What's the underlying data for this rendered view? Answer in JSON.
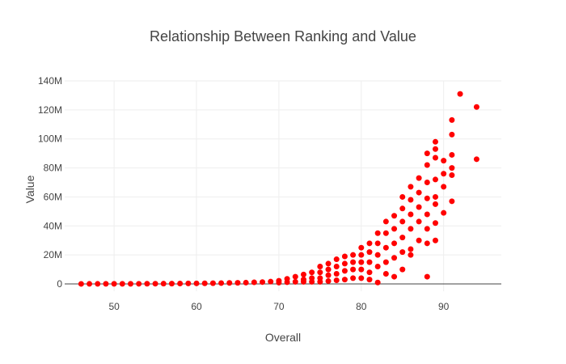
{
  "chart_data": {
    "type": "scatter",
    "title": "Relationship Between Ranking and Value",
    "xlabel": "Overall",
    "ylabel": "Value",
    "xlim": [
      44,
      97
    ],
    "ylim": [
      -5000000,
      140000000
    ],
    "x_ticks": [
      50,
      60,
      70,
      80,
      90
    ],
    "x_tick_labels": [
      "50",
      "60",
      "70",
      "80",
      "90"
    ],
    "y_ticks": [
      0,
      20000000,
      40000000,
      60000000,
      80000000,
      100000000,
      120000000,
      140000000
    ],
    "y_tick_labels": [
      "0",
      "20M",
      "40M",
      "60M",
      "80M",
      "100M",
      "120M",
      "140M"
    ],
    "grid": true,
    "legend": "none",
    "marker_color": "#ff0000",
    "points": [
      [
        46,
        50000
      ],
      [
        47,
        60000
      ],
      [
        48,
        60000
      ],
      [
        49,
        80000
      ],
      [
        50,
        80000
      ],
      [
        51,
        100000
      ],
      [
        52,
        110000
      ],
      [
        53,
        120000
      ],
      [
        54,
        150000
      ],
      [
        55,
        180000
      ],
      [
        56,
        200000
      ],
      [
        57,
        250000
      ],
      [
        58,
        300000
      ],
      [
        59,
        350000
      ],
      [
        60,
        400000
      ],
      [
        61,
        450000
      ],
      [
        62,
        500000
      ],
      [
        63,
        600000
      ],
      [
        64,
        700000
      ],
      [
        65,
        800000
      ],
      [
        66,
        900000
      ],
      [
        67,
        1100000
      ],
      [
        68,
        1300000
      ],
      [
        69,
        1600000
      ],
      [
        70,
        2200000
      ],
      [
        70,
        900000
      ],
      [
        71,
        3500000
      ],
      [
        71,
        1200000
      ],
      [
        72,
        5000000
      ],
      [
        72,
        1500000
      ],
      [
        73,
        6500000
      ],
      [
        73,
        3000000
      ],
      [
        73,
        1500000
      ],
      [
        74,
        8000000
      ],
      [
        74,
        4000000
      ],
      [
        74,
        1500000
      ],
      [
        75,
        12000000
      ],
      [
        75,
        8000000
      ],
      [
        75,
        4000000
      ],
      [
        75,
        1500000
      ],
      [
        76,
        14000000
      ],
      [
        76,
        10000000
      ],
      [
        76,
        6000000
      ],
      [
        76,
        2000000
      ],
      [
        77,
        17000000
      ],
      [
        77,
        12000000
      ],
      [
        77,
        7000000
      ],
      [
        77,
        2500000
      ],
      [
        78,
        19000000
      ],
      [
        78,
        14000000
      ],
      [
        78,
        9000000
      ],
      [
        78,
        3000000
      ],
      [
        79,
        20000000
      ],
      [
        79,
        15000000
      ],
      [
        79,
        10000000
      ],
      [
        79,
        4000000
      ],
      [
        80,
        25000000
      ],
      [
        80,
        20000000
      ],
      [
        80,
        15000000
      ],
      [
        80,
        10000000
      ],
      [
        80,
        4000000
      ],
      [
        81,
        28000000
      ],
      [
        81,
        22000000
      ],
      [
        81,
        15000000
      ],
      [
        81,
        8000000
      ],
      [
        81,
        3000000
      ],
      [
        82,
        35000000
      ],
      [
        82,
        28000000
      ],
      [
        82,
        20000000
      ],
      [
        82,
        12000000
      ],
      [
        82,
        1000000
      ],
      [
        83,
        43000000
      ],
      [
        83,
        35000000
      ],
      [
        83,
        25000000
      ],
      [
        83,
        15000000
      ],
      [
        83,
        7000000
      ],
      [
        84,
        47000000
      ],
      [
        84,
        38000000
      ],
      [
        84,
        28000000
      ],
      [
        84,
        18000000
      ],
      [
        84,
        5000000
      ],
      [
        85,
        60000000
      ],
      [
        85,
        52000000
      ],
      [
        85,
        43000000
      ],
      [
        85,
        32000000
      ],
      [
        85,
        22000000
      ],
      [
        85,
        10000000
      ],
      [
        86,
        67000000
      ],
      [
        86,
        58000000
      ],
      [
        86,
        48000000
      ],
      [
        86,
        38000000
      ],
      [
        86,
        24000000
      ],
      [
        86,
        20000000
      ],
      [
        87,
        73000000
      ],
      [
        87,
        63000000
      ],
      [
        87,
        53000000
      ],
      [
        87,
        43000000
      ],
      [
        87,
        30000000
      ],
      [
        88,
        90000000
      ],
      [
        88,
        82000000
      ],
      [
        88,
        70000000
      ],
      [
        88,
        59000000
      ],
      [
        88,
        48000000
      ],
      [
        88,
        38000000
      ],
      [
        88,
        28000000
      ],
      [
        88,
        5000000
      ],
      [
        89,
        98000000
      ],
      [
        89,
        93000000
      ],
      [
        89,
        87000000
      ],
      [
        89,
        72000000
      ],
      [
        89,
        60000000
      ],
      [
        89,
        55000000
      ],
      [
        89,
        42000000
      ],
      [
        89,
        30000000
      ],
      [
        90,
        85000000
      ],
      [
        90,
        76000000
      ],
      [
        90,
        67000000
      ],
      [
        90,
        49000000
      ],
      [
        91,
        113000000
      ],
      [
        91,
        103000000
      ],
      [
        91,
        89000000
      ],
      [
        91,
        80000000
      ],
      [
        91,
        75000000
      ],
      [
        91,
        57000000
      ],
      [
        92,
        131000000
      ],
      [
        94,
        122000000
      ],
      [
        94,
        86000000
      ]
    ]
  }
}
